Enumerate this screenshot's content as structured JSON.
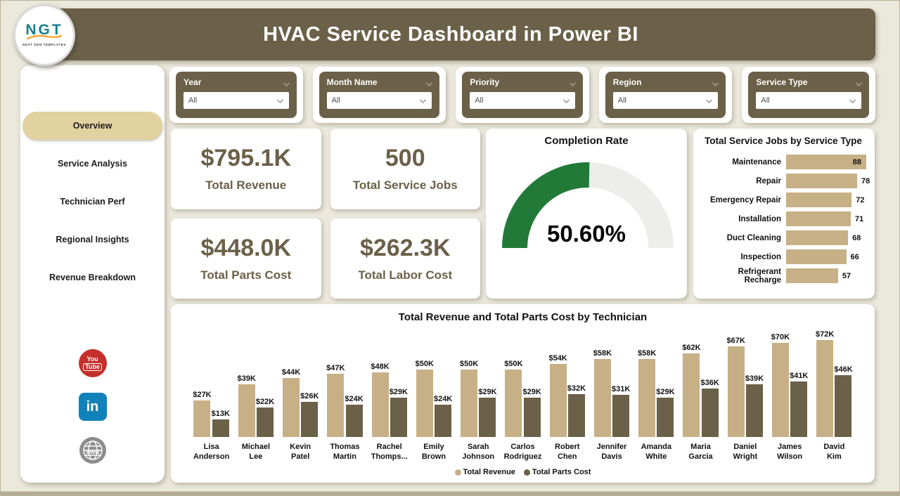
{
  "header": {
    "title": "HVAC Service Dashboard in Power BI",
    "logo": {
      "text": "NGT",
      "subtext": "NEXT GEN TEMPLATES"
    }
  },
  "sidebar": {
    "items": [
      {
        "label": "Overview",
        "active": true
      },
      {
        "label": "Service Analysis",
        "active": false
      },
      {
        "label": "Technician Perf",
        "active": false
      },
      {
        "label": "Regional Insights",
        "active": false
      },
      {
        "label": "Revenue Breakdown",
        "active": false
      }
    ],
    "social": [
      {
        "icon": "youtube-icon",
        "color": "#c4302b"
      },
      {
        "icon": "linkedin-icon",
        "color": "#1081b9"
      },
      {
        "icon": "website-icon",
        "color": "#8d8d8d"
      }
    ]
  },
  "filters": [
    {
      "label": "Year",
      "value": "All"
    },
    {
      "label": "Month Name",
      "value": "All"
    },
    {
      "label": "Priority",
      "value": "All"
    },
    {
      "label": "Region",
      "value": "All"
    },
    {
      "label": "Service Type",
      "value": "All"
    }
  ],
  "kpis": [
    {
      "value": "$795.1K",
      "label": "Total Revenue"
    },
    {
      "value": "500",
      "label": "Total Service Jobs"
    },
    {
      "value": "$448.0K",
      "label": "Total Parts Cost"
    },
    {
      "value": "$262.3K",
      "label": "Total Labor Cost"
    }
  ],
  "colors": {
    "accent_olive": "#6b6048",
    "accent_tan": "#c7b086",
    "pill_tan": "#e2d2a0",
    "gauge_green": "#217a38",
    "gauge_track": "#ededeb",
    "page_bg": "#ebe8dc"
  },
  "chart_data": [
    {
      "type": "gauge",
      "title": "Completion Rate",
      "value": 50.6,
      "value_label": "50.60%",
      "min": 0,
      "max": 100,
      "color": "#217a38",
      "track_color": "#ededeb"
    },
    {
      "type": "bar",
      "subtype": "horizontal",
      "title": "Total Service Jobs by Service Type",
      "categories": [
        "Maintenance",
        "Repair",
        "Emergency Repair",
        "Installation",
        "Duct Cleaning",
        "Inspection",
        "Refrigerant Recharge"
      ],
      "values": [
        88,
        78,
        72,
        71,
        68,
        66,
        57
      ],
      "xlim": [
        0,
        88
      ],
      "bar_color": "#c7b086",
      "data_labels": true,
      "gridlines": false
    },
    {
      "type": "bar",
      "subtype": "clustered-column",
      "title": "Total Revenue and Total Parts Cost by Technician",
      "categories": [
        [
          "Lisa",
          "Anderson"
        ],
        [
          "Michael",
          "Lee"
        ],
        [
          "Kevin",
          "Patel"
        ],
        [
          "Thomas",
          "Martin"
        ],
        [
          "Rachel",
          "Thomps..."
        ],
        [
          "Emily",
          "Brown"
        ],
        [
          "Sarah",
          "Johnson"
        ],
        [
          "Carlos",
          "Rodriguez"
        ],
        [
          "Robert",
          "Chen"
        ],
        [
          "Jennifer",
          "Davis"
        ],
        [
          "Amanda",
          "White"
        ],
        [
          "Maria",
          "Garcia"
        ],
        [
          "Daniel",
          "Wright"
        ],
        [
          "James",
          "Wilson"
        ],
        [
          "David",
          "Kim"
        ]
      ],
      "series": [
        {
          "name": "Total Revenue",
          "color": "#c7b086",
          "values": [
            27,
            39,
            44,
            47,
            48,
            50,
            50,
            50,
            54,
            58,
            58,
            62,
            67,
            70,
            72
          ],
          "labels": [
            "$27K",
            "$39K",
            "$44K",
            "$47K",
            "$48K",
            "$50K",
            "$50K",
            "$50K",
            "$54K",
            "$58K",
            "$58K",
            "$62K",
            "$67K",
            "$70K",
            "$72K"
          ]
        },
        {
          "name": "Total Parts Cost",
          "color": "#6b6048",
          "values": [
            13,
            22,
            26,
            24,
            29,
            24,
            29,
            29,
            32,
            31,
            29,
            36,
            39,
            41,
            46
          ],
          "labels": [
            "$13K",
            "$22K",
            "$26K",
            "$24K",
            "$29K",
            "$24K",
            "$29K",
            "$29K",
            "$32K",
            "$31K",
            "$29K",
            "$36K",
            "$39K",
            "$41K",
            "$46K"
          ]
        }
      ],
      "ylim": [
        0,
        75
      ],
      "legend_position": "bottom",
      "data_labels": true,
      "gridlines": false
    }
  ]
}
